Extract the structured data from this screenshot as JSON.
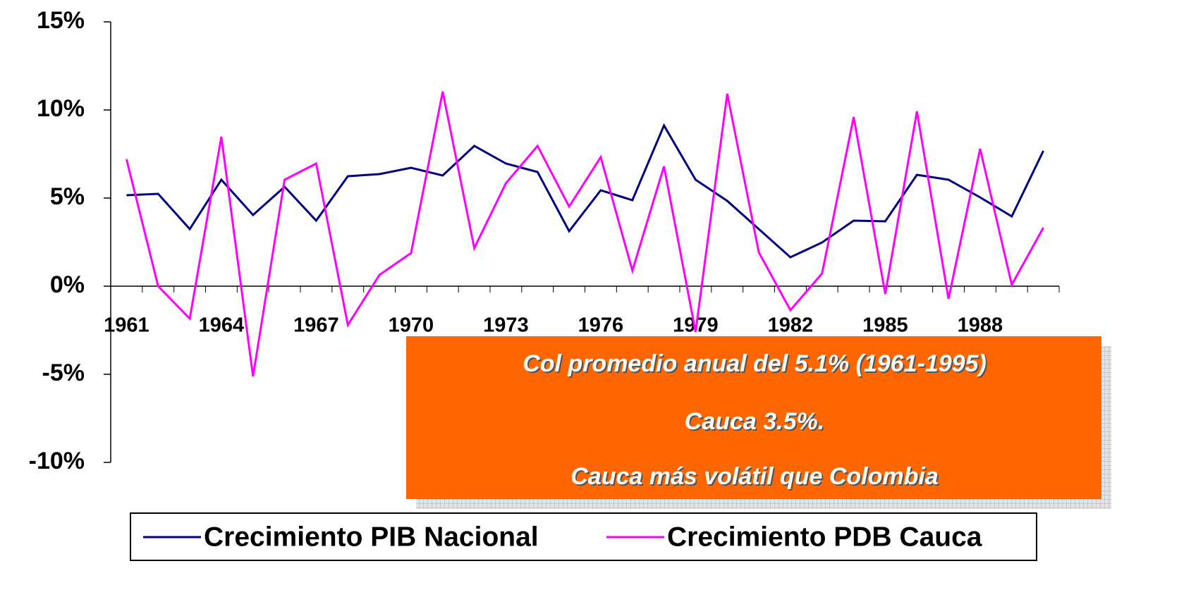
{
  "chart_data": {
    "type": "line",
    "categories": [
      "1961",
      null,
      null,
      "1964",
      null,
      null,
      "1967",
      null,
      null,
      "1970",
      null,
      null,
      "1973",
      null,
      null,
      "1976",
      null,
      null,
      "1979",
      null,
      null,
      "1982",
      null,
      null,
      "1985",
      null,
      null,
      "1988",
      null,
      null
    ],
    "series": [
      {
        "name": "Crecimiento PIB Nacional",
        "color": "#000080",
        "values": [
          5.16,
          5.24,
          3.24,
          6.04,
          4.04,
          5.64,
          3.72,
          6.24,
          6.36,
          6.72,
          6.28,
          7.96,
          6.96,
          6.48,
          3.12,
          5.44,
          4.88,
          9.12,
          6.04,
          4.84,
          3.24,
          1.64,
          2.48,
          3.72,
          3.68,
          6.32,
          6.04,
          5.04,
          3.96,
          7.68
        ]
      },
      {
        "name": "Crecimiento PDB Cauca",
        "color": "#ff00ff",
        "values": [
          7.2,
          0,
          -1.84,
          8.48,
          -5.12,
          6.04,
          6.96,
          -2.2,
          0.64,
          1.88,
          11.04,
          2.16,
          5.84,
          7.96,
          4.52,
          7.32,
          0.88,
          6.8,
          -2.6,
          10.92,
          1.92,
          -1.36,
          0.72,
          9.6,
          -0.44,
          9.92,
          -0.72,
          7.8,
          0.08,
          3.32
        ]
      }
    ],
    "ylim": [
      -10,
      15
    ],
    "yticks": [
      {
        "value": -10,
        "label": "-10%"
      },
      {
        "value": -5,
        "label": "-5%"
      },
      {
        "value": 0,
        "label": "0%"
      },
      {
        "value": 5,
        "label": "5%"
      },
      {
        "value": 10,
        "label": "10%"
      },
      {
        "value": 15,
        "label": "15%"
      }
    ],
    "annotations": [
      "Col promedio anual del 5.1% (1961-1995)",
      "Cauca 3.5%.",
      "Cauca más volátil que Colombia"
    ]
  }
}
